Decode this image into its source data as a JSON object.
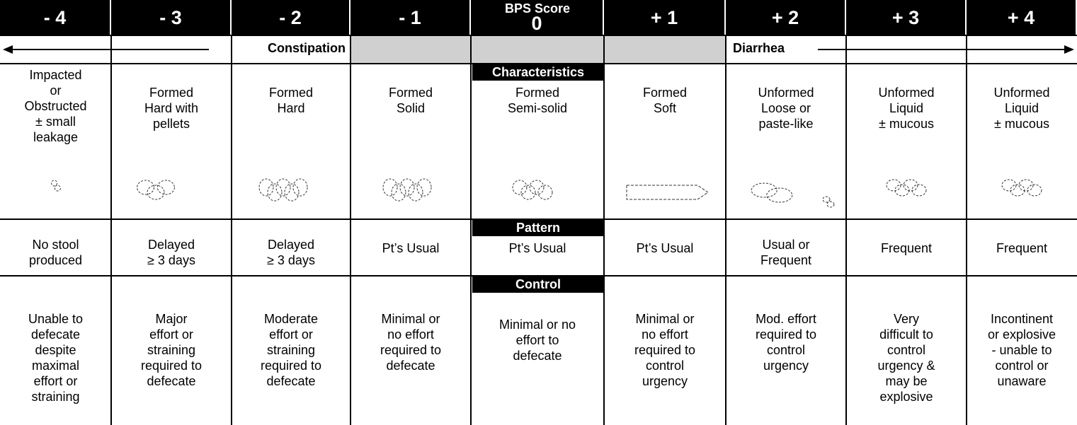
{
  "header": {
    "score_title": "BPS Score",
    "scores": [
      "- 4",
      "- 3",
      "- 2",
      "- 1",
      "0",
      "+ 1",
      "+ 2",
      "+ 3",
      "+ 4"
    ]
  },
  "scale": {
    "left": "Constipation",
    "right": "Diarrhea"
  },
  "sections": [
    {
      "label": "Characteristics",
      "cells": [
        "Impacted\nor\nObstructed\n± small\nleakage",
        "Formed\nHard with\npellets",
        "Formed\nHard",
        "Formed\nSolid",
        "Formed\nSemi-solid",
        "Formed\nSoft",
        "Unformed\nLoose or\npaste-like",
        "Unformed\nLiquid\n± mucous",
        "Unformed\nLiquid\n± mucous"
      ]
    },
    {
      "label": "Pattern",
      "cells": [
        "No stool\nproduced",
        "Delayed\n≥ 3 days",
        "Delayed\n≥ 3 days",
        "Pt’s Usual",
        "Pt’s Usual",
        "Pt’s Usual",
        "Usual or\nFrequent",
        "Frequent",
        "Frequent"
      ]
    },
    {
      "label": "Control",
      "cells": [
        "Unable to\ndefecate\ndespite\nmaximal\neffort or\nstraining",
        "Major\neffort or\nstraining\nrequired to\ndefecate",
        "Moderate\neffort or\nstraining\nrequired to\ndefecate",
        "Minimal or\nno effort\nrequired to\ndefecate",
        "Minimal or no\neffort to\ndefecate",
        "Minimal or\nno effort\nrequired to\ncontrol\nurgency",
        "Mod.  effort\nrequired to\ncontrol\nurgency",
        "Very\ndifficult to\ncontrol\nurgency &\nmay be\nexplosive",
        "Incontinent\nor explosive\n- unable to\ncontrol or\nunaware"
      ]
    }
  ]
}
